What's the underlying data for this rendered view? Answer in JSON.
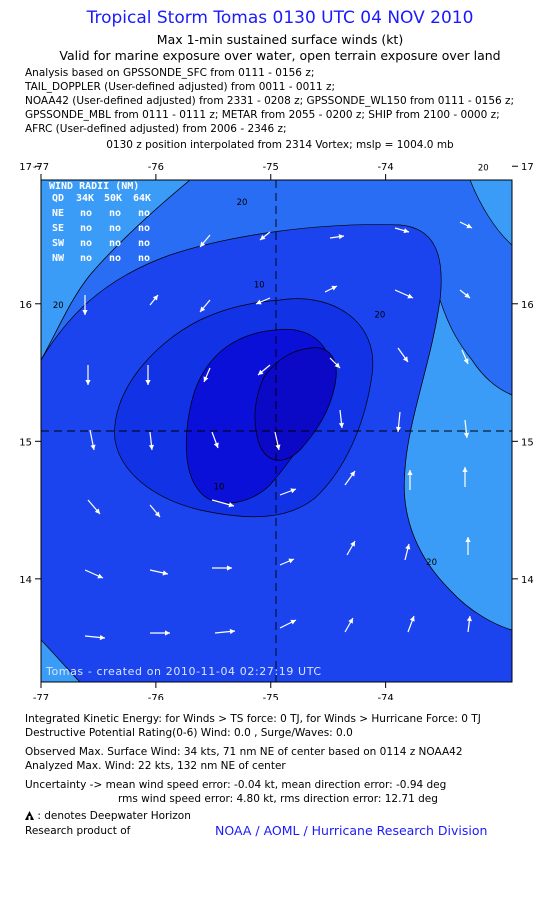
{
  "header": {
    "title": "Tropical Storm Tomas 0130 UTC 04 NOV 2010",
    "subtitle1": "Max 1-min sustained surface winds (kt)",
    "subtitle2": "Valid for marine exposure over water, open terrain exposure over land"
  },
  "analysis_lines": [
    "Analysis based on GPSSONDE_SFC from 0111 - 0156 z;",
    "TAIL_DOPPLER (User-defined adjusted) from 0011 - 0011 z;",
    "NOAA42 (User-defined adjusted) from 2331 - 0208 z; GPSSONDE_WL150 from 0111 - 0156 z;",
    "GPSSONDE_MBL from 0111 - 0111 z; METAR from 2055 - 0200 z; SHIP from 2100 - 0000 z;",
    "AFRC (User-defined adjusted) from 2006 - 2346 z;"
  ],
  "position_note": "0130 z position interpolated from 2314 Vortex; mslp = 1004.0 mb",
  "wind_radii_table": {
    "title": "WIND RADII (NM)",
    "header": [
      "QD",
      "34K",
      "50K",
      "64K"
    ],
    "rows": [
      [
        "NE",
        "no",
        "no",
        "no"
      ],
      [
        "SE",
        "no",
        "no",
        "no"
      ],
      [
        "SW",
        "no",
        "no",
        "no"
      ],
      [
        "NW",
        "no",
        "no",
        "no"
      ]
    ]
  },
  "chart_data": {
    "type": "contour",
    "x_ticks": [
      "-77",
      "-76",
      "-75",
      "-74"
    ],
    "y_ticks": [
      "17",
      "16",
      "15",
      "14"
    ],
    "x_tick_values": [
      -77,
      -76,
      -75,
      -74
    ],
    "y_tick_values": [
      17,
      16,
      15,
      14
    ],
    "xlim": [
      -77.0,
      -72.9
    ],
    "ylim": [
      13.25,
      16.9
    ],
    "center": [
      -75.3,
      15.25
    ],
    "contour_labels": [
      {
        "text": "20",
        "lon": -75.25,
        "lat": 16.72
      },
      {
        "text": "20",
        "lon": -76.85,
        "lat": 15.97
      },
      {
        "text": "20",
        "lon": -74.05,
        "lat": 15.9
      },
      {
        "text": "10",
        "lon": -75.1,
        "lat": 16.12
      },
      {
        "text": "10",
        "lon": -75.45,
        "lat": 14.65
      },
      {
        "text": "20",
        "lon": -73.6,
        "lat": 14.1
      },
      {
        "text": "20",
        "lon": -73.15,
        "lat": 16.97
      }
    ],
    "wind_levels": [
      "<10",
      "10-15",
      "15-20",
      "20-25"
    ],
    "level_colors": [
      "#0a10d8",
      "#1c44ee",
      "#2a6df5",
      "#3a9cf7"
    ],
    "annotation": "Tomas - created on 2010-11-04 02:27:19 UTC"
  },
  "footer": {
    "ike": "Integrated Kinetic Energy:  for Winds > TS force: 0 TJ,  for Winds > Hurricane Force: 0 TJ",
    "destructive": "Destructive Potential Rating(0-6)   Wind: 0.0 , Surge/Waves: 0.0",
    "observed": "Observed Max. Surface Wind: 34 kts, 71 nm NE of center based on 0114 z NOAA42",
    "analyzed": "Analyzed Max. Wind: 22 kts, 132 nm NE of center",
    "uncertainty1": "Uncertainty -> mean wind speed error:  -0.04 kt,   mean direction error:  -0.94 deg",
    "uncertainty2": "rms wind speed error: 4.80 kt,   rms direction error: 12.71 deg",
    "deepwater": ": denotes Deepwater Horizon",
    "research": "Research product of",
    "org": "NOAA / AOML / Hurricane Research Division"
  }
}
